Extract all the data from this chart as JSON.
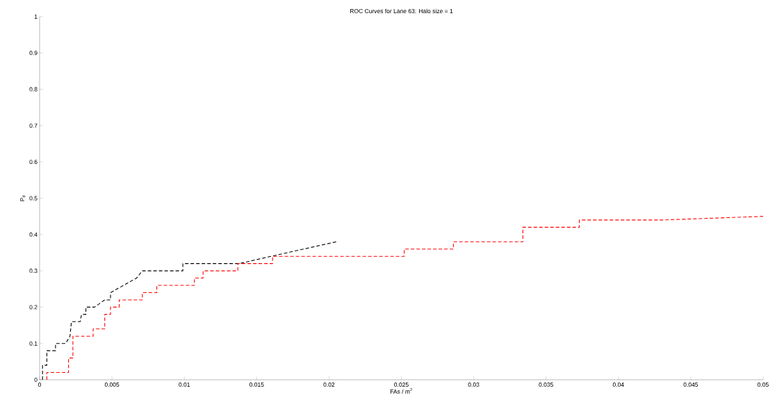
{
  "chart_data": {
    "type": "line",
    "title": "ROC Curves for Lane 63: Halo size = 1",
    "xlabel": "FAs / m$^{2}$",
    "ylabel": "P$_{d}$",
    "xlim": [
      0,
      0.05
    ],
    "ylim": [
      0,
      1
    ],
    "xticks": [
      0,
      0.005,
      0.01,
      0.015,
      0.02,
      0.025,
      0.03,
      0.035,
      0.04,
      0.045,
      0.05
    ],
    "yticks": [
      0,
      0.1,
      0.2,
      0.3,
      0.4,
      0.5,
      0.6,
      0.7,
      0.8,
      0.9,
      1
    ],
    "grid": false,
    "marker": "none",
    "line_style": "dashed",
    "series": [
      {
        "color": "#000000",
        "x": [
          0.0002,
          0.0002,
          0.0005,
          0.0005,
          0.0011,
          0.0011,
          0.0018,
          0.0021,
          0.0022,
          0.0028,
          0.0029,
          0.0032,
          0.0032,
          0.0038,
          0.0045,
          0.0049,
          0.0049,
          0.0067,
          0.0071,
          0.0099,
          0.0099,
          0.0138,
          0.016,
          0.0205
        ],
        "values": [
          0,
          0.04,
          0.04,
          0.08,
          0.08,
          0.1,
          0.1,
          0.12,
          0.16,
          0.16,
          0.18,
          0.18,
          0.2,
          0.2,
          0.22,
          0.22,
          0.24,
          0.28,
          0.3,
          0.3,
          0.32,
          0.32,
          0.34,
          0.38
        ]
      },
      {
        "color": "#ff0000",
        "x": [
          0.0005,
          0.0005,
          0.002,
          0.002,
          0.0023,
          0.0023,
          0.0037,
          0.0037,
          0.0045,
          0.0045,
          0.0049,
          0.0049,
          0.0055,
          0.0055,
          0.0071,
          0.0071,
          0.0081,
          0.0081,
          0.0107,
          0.0107,
          0.0113,
          0.0113,
          0.0137,
          0.0137,
          0.0161,
          0.0161,
          0.0252,
          0.0252,
          0.0286,
          0.0286,
          0.0334,
          0.0334,
          0.0373,
          0.0373,
          0.043,
          0.05
        ],
        "values": [
          0,
          0.02,
          0.02,
          0.06,
          0.06,
          0.12,
          0.12,
          0.14,
          0.14,
          0.18,
          0.18,
          0.2,
          0.2,
          0.22,
          0.22,
          0.24,
          0.24,
          0.26,
          0.26,
          0.28,
          0.28,
          0.3,
          0.3,
          0.32,
          0.32,
          0.34,
          0.34,
          0.36,
          0.36,
          0.38,
          0.38,
          0.42,
          0.42,
          0.44,
          0.44,
          0.45
        ]
      }
    ]
  }
}
